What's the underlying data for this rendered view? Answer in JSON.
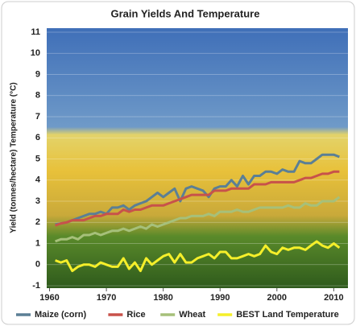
{
  "chart_data": {
    "type": "line",
    "title": "Grain Yields And Temperature",
    "y_label": "Yield (tonnes/hectare) Temperature (°C)",
    "x": [
      1961,
      1962,
      1963,
      1964,
      1965,
      1966,
      1967,
      1968,
      1969,
      1970,
      1971,
      1972,
      1973,
      1974,
      1975,
      1976,
      1977,
      1978,
      1979,
      1980,
      1981,
      1982,
      1983,
      1984,
      1985,
      1986,
      1987,
      1988,
      1989,
      1990,
      1991,
      1992,
      1993,
      1994,
      1995,
      1996,
      1997,
      1998,
      1999,
      2000,
      2001,
      2002,
      2003,
      2004,
      2005,
      2006,
      2007,
      2008,
      2009,
      2010,
      2011
    ],
    "xlim": [
      1959.5,
      2012.5
    ],
    "xticks": [
      1960,
      1970,
      1980,
      1990,
      2000,
      2010
    ],
    "ylim": [
      -1,
      11
    ],
    "yticks": [
      -1,
      0,
      1,
      2,
      3,
      4,
      5,
      6,
      7,
      8,
      9,
      10,
      11
    ],
    "grid": true,
    "legend": "bottom",
    "series": [
      {
        "name": "Maize (corn)",
        "color": "#5b7f95",
        "values": [
          1.9,
          1.95,
          2.0,
          2.1,
          2.2,
          2.3,
          2.4,
          2.4,
          2.5,
          2.4,
          2.7,
          2.7,
          2.8,
          2.6,
          2.8,
          2.9,
          3.0,
          3.2,
          3.4,
          3.2,
          3.4,
          3.6,
          3.0,
          3.6,
          3.7,
          3.6,
          3.5,
          3.2,
          3.6,
          3.7,
          3.7,
          4.0,
          3.7,
          4.2,
          3.8,
          4.2,
          4.2,
          4.4,
          4.4,
          4.3,
          4.5,
          4.4,
          4.4,
          4.9,
          4.8,
          4.8,
          5.0,
          5.2,
          5.2,
          5.2,
          5.1
        ]
      },
      {
        "name": "Rice",
        "color": "#c8524a",
        "values": [
          1.85,
          1.95,
          2.0,
          2.1,
          2.1,
          2.1,
          2.2,
          2.3,
          2.3,
          2.4,
          2.4,
          2.4,
          2.6,
          2.5,
          2.6,
          2.6,
          2.7,
          2.8,
          2.8,
          2.8,
          2.9,
          3.0,
          3.1,
          3.2,
          3.3,
          3.3,
          3.3,
          3.3,
          3.5,
          3.5,
          3.5,
          3.6,
          3.6,
          3.6,
          3.6,
          3.8,
          3.8,
          3.8,
          3.9,
          3.9,
          3.9,
          3.9,
          3.9,
          4.0,
          4.1,
          4.1,
          4.2,
          4.3,
          4.3,
          4.4,
          4.4
        ]
      },
      {
        "name": "Wheat",
        "color": "#a6c07a",
        "values": [
          1.1,
          1.2,
          1.2,
          1.3,
          1.2,
          1.4,
          1.4,
          1.5,
          1.4,
          1.5,
          1.6,
          1.6,
          1.7,
          1.6,
          1.7,
          1.8,
          1.7,
          1.9,
          1.8,
          1.9,
          2.0,
          2.1,
          2.2,
          2.2,
          2.3,
          2.3,
          2.3,
          2.4,
          2.3,
          2.5,
          2.5,
          2.5,
          2.6,
          2.5,
          2.5,
          2.6,
          2.7,
          2.7,
          2.7,
          2.7,
          2.7,
          2.8,
          2.7,
          2.7,
          2.9,
          2.8,
          2.8,
          3.0,
          3.0,
          3.0,
          3.2
        ]
      },
      {
        "name": "BEST Land Temperature",
        "color": "#f5ef2a",
        "values": [
          0.2,
          0.1,
          0.2,
          -0.3,
          -0.1,
          0.0,
          0.0,
          -0.1,
          0.1,
          0.0,
          -0.1,
          -0.1,
          0.3,
          -0.2,
          0.1,
          -0.3,
          0.3,
          0.0,
          0.2,
          0.4,
          0.5,
          0.1,
          0.5,
          0.1,
          0.1,
          0.3,
          0.4,
          0.5,
          0.3,
          0.6,
          0.6,
          0.3,
          0.3,
          0.4,
          0.5,
          0.4,
          0.5,
          0.9,
          0.6,
          0.5,
          0.8,
          0.7,
          0.8,
          0.8,
          0.7,
          0.9,
          1.1,
          0.9,
          0.8,
          1.0,
          0.8
        ]
      }
    ]
  }
}
